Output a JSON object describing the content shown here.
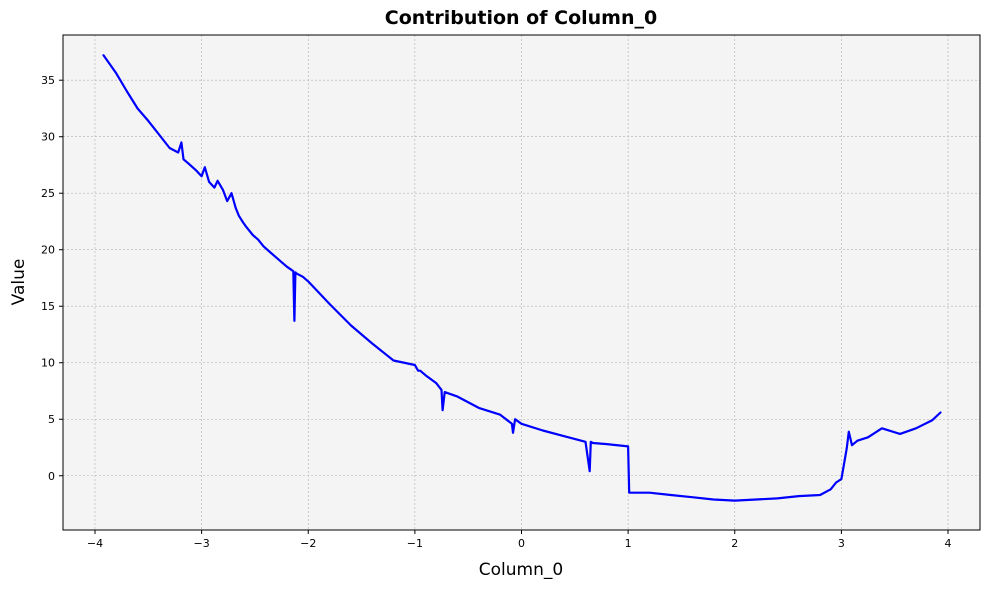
{
  "chart_data": {
    "type": "line",
    "title": "Contribution of Column_0",
    "xlabel": "Column_0",
    "ylabel": "Value",
    "xlim": [
      -4.3,
      4.3
    ],
    "ylim": [
      -4.8,
      39.0
    ],
    "xticks": [
      -4,
      -3,
      -2,
      -1,
      0,
      1,
      2,
      3,
      4
    ],
    "yticks": [
      0,
      5,
      10,
      15,
      20,
      25,
      30,
      35
    ],
    "grid": true,
    "background": "#f4f4f4",
    "line_color": "#0000ff",
    "series": [
      {
        "x": [
          -3.92,
          -3.8,
          -3.7,
          -3.6,
          -3.5,
          -3.4,
          -3.3,
          -3.22,
          -3.19,
          -3.17,
          -3.12,
          -3.05,
          -3.0,
          -2.97,
          -2.93,
          -2.88,
          -2.85,
          -2.8,
          -2.76,
          -2.72,
          -2.68,
          -2.65,
          -2.61,
          -2.58,
          -2.52,
          -2.47,
          -2.42,
          -2.36,
          -2.3,
          -2.25,
          -2.2,
          -2.14,
          -2.13,
          -2.12,
          -2.11,
          -2.05,
          -2.0,
          -1.8,
          -1.6,
          -1.4,
          -1.2,
          -1.0,
          -0.97,
          -0.95,
          -0.9,
          -0.8,
          -0.75,
          -0.74,
          -0.72,
          -0.6,
          -0.4,
          -0.2,
          -0.09,
          -0.08,
          -0.06,
          0.0,
          0.2,
          0.4,
          0.6,
          0.64,
          0.65,
          0.67,
          0.8,
          1.0,
          1.01,
          1.2,
          1.4,
          1.6,
          1.8,
          2.0,
          2.2,
          2.4,
          2.6,
          2.8,
          2.9,
          2.95,
          3.0,
          3.05,
          3.07,
          3.1,
          3.15,
          3.25,
          3.38,
          3.55,
          3.7,
          3.85,
          3.93
        ],
        "y": [
          37.2,
          35.6,
          34.0,
          32.5,
          31.4,
          30.2,
          29.0,
          28.6,
          29.5,
          28.0,
          27.6,
          27.0,
          26.5,
          27.3,
          26.0,
          25.5,
          26.1,
          25.3,
          24.3,
          25.0,
          23.7,
          23.0,
          22.4,
          22.0,
          21.3,
          20.9,
          20.3,
          19.8,
          19.3,
          18.9,
          18.5,
          18.1,
          13.7,
          18.0,
          17.9,
          17.6,
          17.2,
          15.2,
          13.3,
          11.7,
          10.2,
          9.8,
          9.3,
          9.3,
          8.9,
          8.2,
          7.6,
          5.8,
          7.4,
          7.0,
          6.0,
          5.4,
          4.6,
          3.8,
          5.0,
          4.6,
          4.0,
          3.5,
          3.0,
          0.4,
          3.0,
          2.9,
          2.8,
          2.6,
          -1.5,
          -1.5,
          -1.7,
          -1.9,
          -2.1,
          -2.2,
          -2.1,
          -2.0,
          -1.8,
          -1.7,
          -1.2,
          -0.6,
          -0.3,
          2.4,
          3.9,
          2.7,
          3.1,
          3.4,
          4.2,
          3.7,
          4.2,
          4.9,
          5.6
        ]
      }
    ]
  }
}
